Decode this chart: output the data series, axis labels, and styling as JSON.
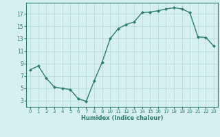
{
  "x": [
    0,
    1,
    2,
    3,
    4,
    5,
    6,
    7,
    8,
    9,
    10,
    11,
    12,
    13,
    14,
    15,
    16,
    17,
    18,
    19,
    20,
    21,
    22,
    23
  ],
  "y": [
    8.0,
    8.6,
    6.6,
    5.2,
    5.0,
    4.8,
    3.3,
    2.9,
    6.2,
    9.2,
    13.0,
    14.6,
    15.3,
    15.7,
    17.2,
    17.3,
    17.5,
    17.8,
    18.0,
    17.8,
    17.2,
    13.3,
    13.2,
    11.8
  ],
  "xlim": [
    -0.5,
    23.5
  ],
  "ylim": [
    2.0,
    18.8
  ],
  "yticks": [
    3,
    5,
    7,
    9,
    11,
    13,
    15,
    17
  ],
  "xticks": [
    0,
    1,
    2,
    3,
    4,
    5,
    6,
    7,
    8,
    9,
    10,
    11,
    12,
    13,
    14,
    15,
    16,
    17,
    18,
    19,
    20,
    21,
    22,
    23
  ],
  "xlabel": "Humidex (Indice chaleur)",
  "line_color": "#2e7d6e",
  "marker_color": "#2e7d6e",
  "bg_color": "#d6f0f0",
  "grid_color": "#b0d8d0",
  "title": ""
}
